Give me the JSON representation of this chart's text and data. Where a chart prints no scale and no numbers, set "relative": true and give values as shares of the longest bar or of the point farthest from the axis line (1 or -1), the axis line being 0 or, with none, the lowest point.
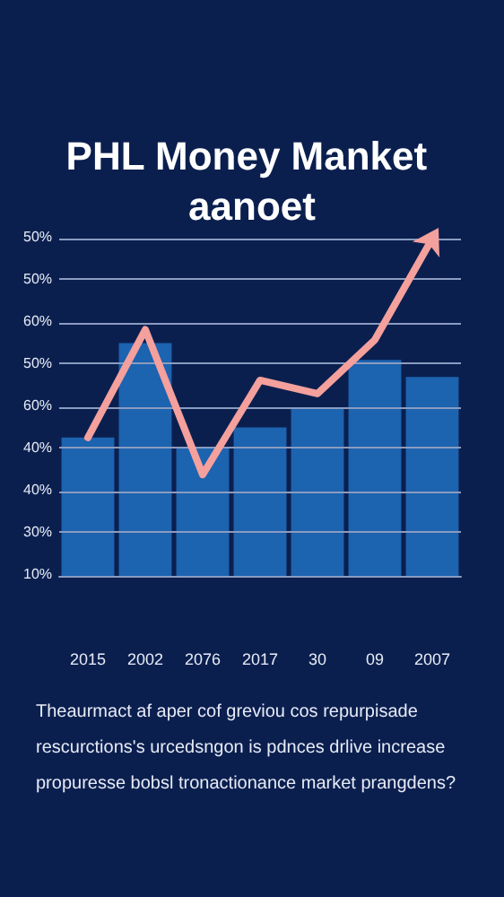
{
  "chart_data": {
    "type": "bar",
    "title": "PHL Money Manket aanoet",
    "relative": true,
    "categories": [
      "2015",
      "2002",
      "2076",
      "2017",
      "30",
      "09",
      "2007"
    ],
    "series": [
      {
        "color": "#1c63b0",
        "values": [
          0.41,
          0.69,
          0.38,
          0.44,
          0.5,
          0.64,
          0.59
        ]
      },
      {
        "type": "line",
        "color": "#f4a09c",
        "values": [
          0.41,
          0.73,
          0.3,
          0.58,
          0.54,
          0.7,
          1.0
        ]
      }
    ],
    "ref_lines": [
      {
        "axis": "y",
        "value": 1.0,
        "color": "#8a9cc0"
      },
      {
        "axis": "y",
        "value": 0.875,
        "color": "#8a9cc0"
      },
      {
        "axis": "y",
        "value": 0.75,
        "color": "#8a9cc0"
      },
      {
        "axis": "y",
        "value": 0.625,
        "color": "#8a9cc0"
      },
      {
        "axis": "y",
        "value": 0.5,
        "color": "#8a9cc0"
      },
      {
        "axis": "y",
        "value": 0.375,
        "color": "#8a9cc0"
      },
      {
        "axis": "y",
        "value": 0.25,
        "color": "#8a9cc0"
      },
      {
        "axis": "y",
        "value": 0.125,
        "color": "#8a9cc0"
      },
      {
        "axis": "y",
        "value": 0,
        "color": "#8a9cc0"
      }
    ],
    "annotations": [
      "50%",
      "50%",
      "60%",
      "50%",
      "60%",
      "40%",
      "40%",
      "30%",
      "10%",
      "Theaurmact af aper cof greviou cos repurpisade",
      "rescurctions's urcedsngon is pdnces drlive increase",
      "propuresse bobsl tronactionance market prangdens?"
    ]
  }
}
